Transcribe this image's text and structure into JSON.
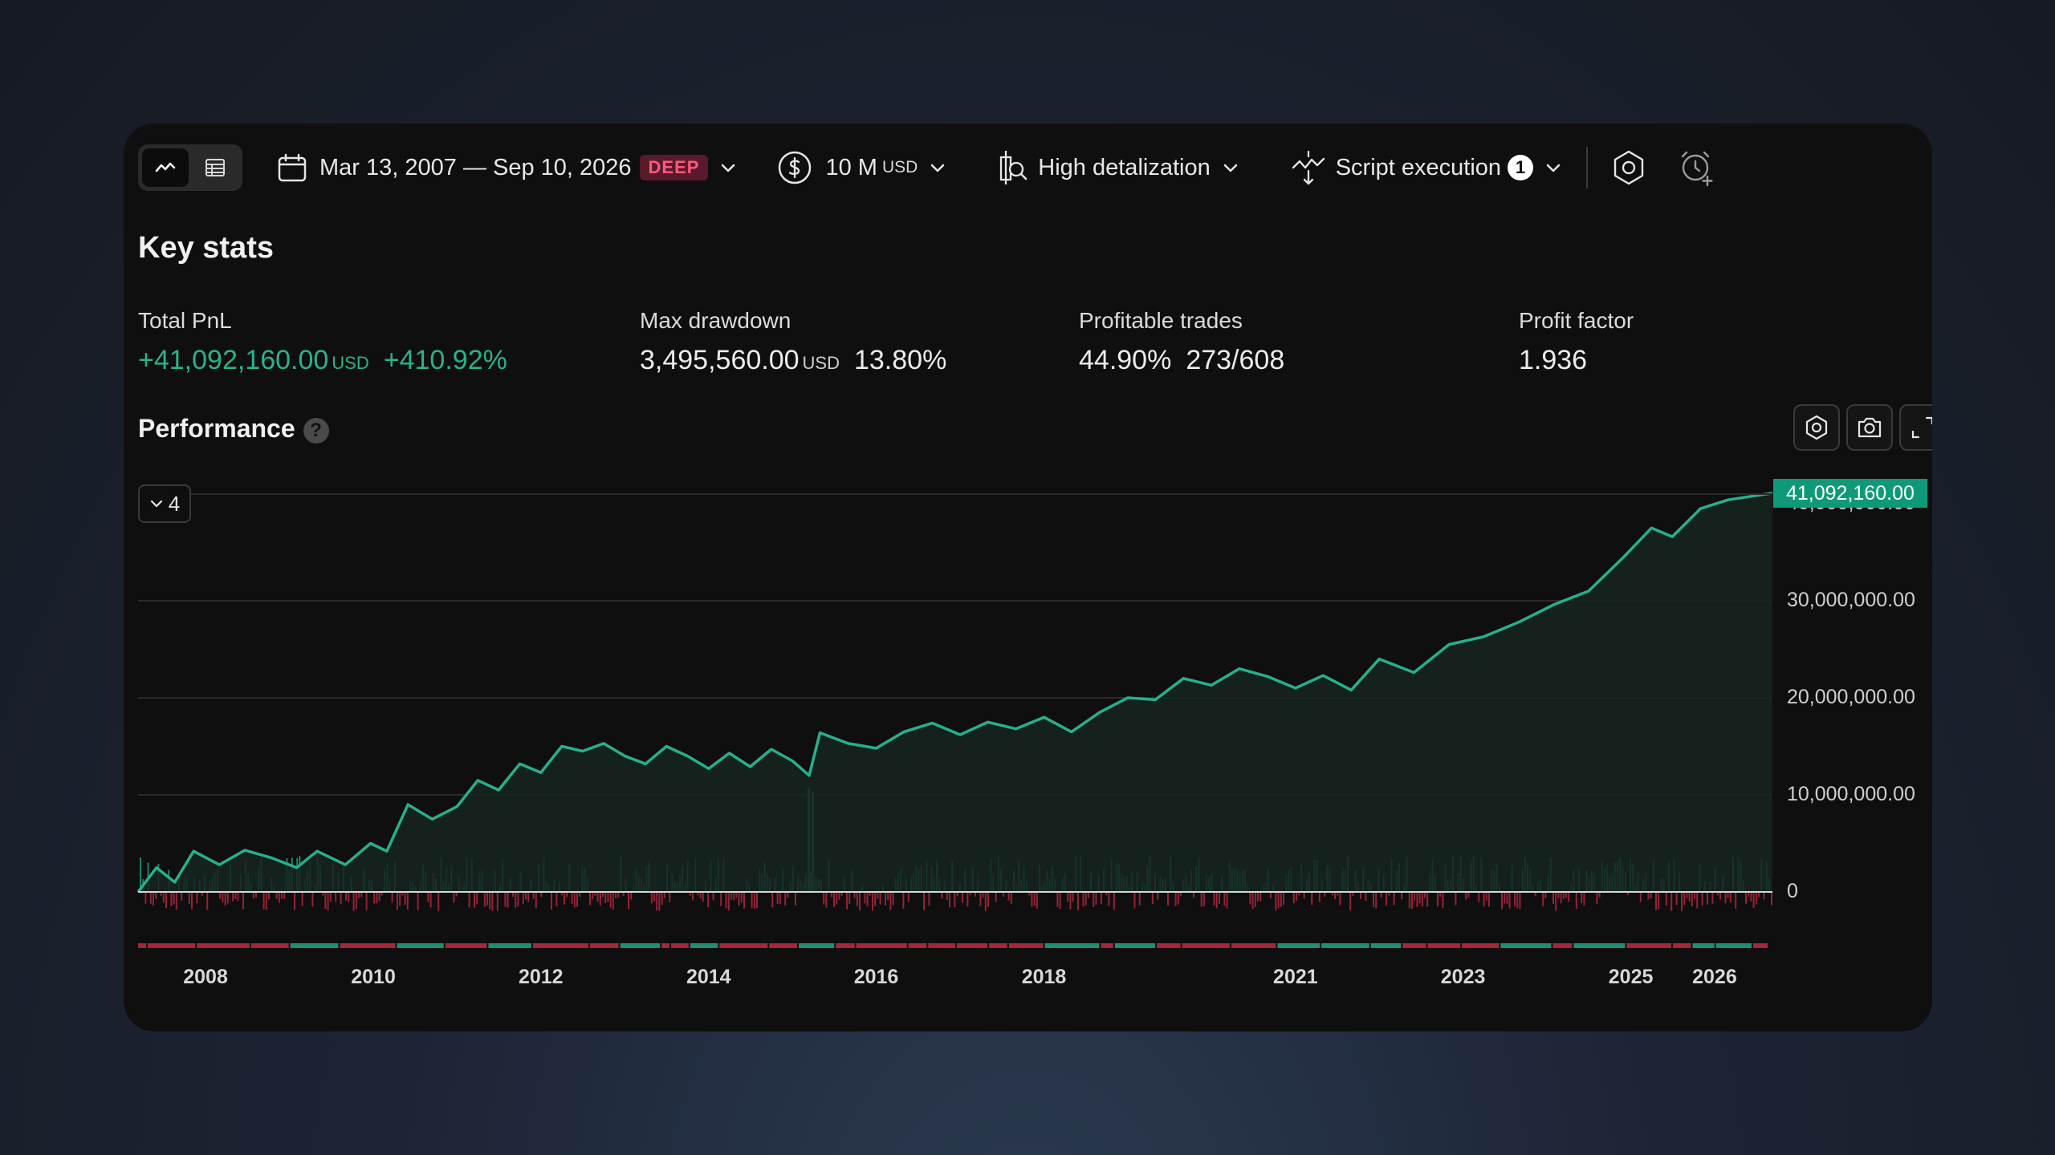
{
  "toolbar": {
    "date_range": "Mar 13, 2007 — Sep 10, 2026",
    "deep_badge": "DEEP",
    "capital_amount": "10 M",
    "capital_currency": "USD",
    "detalization": "High detalization",
    "script_execution": "Script execution",
    "script_execution_count": "1"
  },
  "key_stats": {
    "title": "Key stats",
    "total_pnl": {
      "label": "Total PnL",
      "value": "+41,092,160.00",
      "unit": "USD",
      "percent": "+410.92%"
    },
    "max_drawdown": {
      "label": "Max drawdown",
      "value": "3,495,560.00",
      "unit": "USD",
      "percent": "13.80%"
    },
    "profitable_trades": {
      "label": "Profitable trades",
      "percent": "44.90%",
      "ratio": "273/608"
    },
    "profit_factor": {
      "label": "Profit factor",
      "value": "1.936"
    }
  },
  "performance": {
    "title": "Performance",
    "help": "?",
    "collapse_chip": "4",
    "current_value_tag": "41,092,160.00"
  },
  "colors": {
    "accent": "#2bb28c",
    "loss": "#d0384c",
    "tag": "#0e9a78",
    "background": "#0f0f0f"
  },
  "chart_data": {
    "type": "line",
    "series": [
      {
        "values": [
          [
            "2007-03-13",
            0
          ],
          [
            "2007-06-01",
            2500000
          ],
          [
            "2007-08-20",
            1000000
          ],
          [
            "2007-11-10",
            4200000
          ],
          [
            "2008-03-01",
            2800000
          ],
          [
            "2008-06-20",
            4300000
          ],
          [
            "2008-10-15",
            3500000
          ],
          [
            "2009-02-01",
            2500000
          ],
          [
            "2009-05-01",
            4200000
          ],
          [
            "2009-09-01",
            2800000
          ],
          [
            "2009-12-20",
            5000000
          ],
          [
            "2010-03-01",
            4200000
          ],
          [
            "2010-06-01",
            9000000
          ],
          [
            "2010-09-15",
            7500000
          ],
          [
            "2011-01-01",
            8800000
          ],
          [
            "2011-04-01",
            11500000
          ],
          [
            "2011-07-01",
            10500000
          ],
          [
            "2011-10-01",
            13200000
          ],
          [
            "2012-01-01",
            12300000
          ],
          [
            "2012-04-01",
            15000000
          ],
          [
            "2012-07-01",
            14500000
          ],
          [
            "2012-10-01",
            15300000
          ],
          [
            "2013-01-01",
            14000000
          ],
          [
            "2013-04-01",
            13200000
          ],
          [
            "2013-07-01",
            15000000
          ],
          [
            "2013-10-01",
            14000000
          ],
          [
            "2014-01-01",
            12700000
          ],
          [
            "2014-04-01",
            14300000
          ],
          [
            "2014-07-01",
            12900000
          ],
          [
            "2014-10-01",
            14700000
          ],
          [
            "2015-01-01",
            13500000
          ],
          [
            "2015-03-15",
            12000000
          ],
          [
            "2015-05-01",
            16400000
          ],
          [
            "2015-09-01",
            15300000
          ],
          [
            "2016-01-01",
            14800000
          ],
          [
            "2016-05-01",
            16500000
          ],
          [
            "2016-09-01",
            17400000
          ],
          [
            "2017-01-01",
            16200000
          ],
          [
            "2017-05-01",
            17500000
          ],
          [
            "2017-09-01",
            16800000
          ],
          [
            "2018-01-01",
            18000000
          ],
          [
            "2018-05-01",
            16500000
          ],
          [
            "2018-09-01",
            18500000
          ],
          [
            "2019-01-01",
            20000000
          ],
          [
            "2019-05-01",
            19800000
          ],
          [
            "2019-09-01",
            22000000
          ],
          [
            "2020-01-01",
            21300000
          ],
          [
            "2020-05-01",
            23000000
          ],
          [
            "2020-09-01",
            22200000
          ],
          [
            "2021-01-01",
            21000000
          ],
          [
            "2021-05-01",
            22300000
          ],
          [
            "2021-09-01",
            20800000
          ],
          [
            "2022-01-01",
            24000000
          ],
          [
            "2022-06-01",
            22600000
          ],
          [
            "2022-11-01",
            25500000
          ],
          [
            "2023-04-01",
            26300000
          ],
          [
            "2023-09-01",
            27800000
          ],
          [
            "2024-02-01",
            29600000
          ],
          [
            "2024-07-01",
            31000000
          ],
          [
            "2024-12-01",
            34500000
          ],
          [
            "2025-04-01",
            37500000
          ],
          [
            "2025-07-01",
            36600000
          ],
          [
            "2025-11-01",
            39500000
          ],
          [
            "2026-03-01",
            40400000
          ],
          [
            "2026-09-10",
            41092160
          ]
        ]
      }
    ],
    "x_ticks": [
      "2008",
      "2010",
      "2012",
      "2014",
      "2016",
      "2018",
      "2021",
      "2023",
      "2025",
      "2026"
    ],
    "y_ticks": [
      "0",
      "10,000,000.00",
      "20,000,000.00",
      "30,000,000.00",
      "40,000,000.00"
    ],
    "ylim": [
      0,
      41092160
    ],
    "xlim": [
      "2007-03-13",
      "2026-09-10"
    ],
    "grid": true
  }
}
